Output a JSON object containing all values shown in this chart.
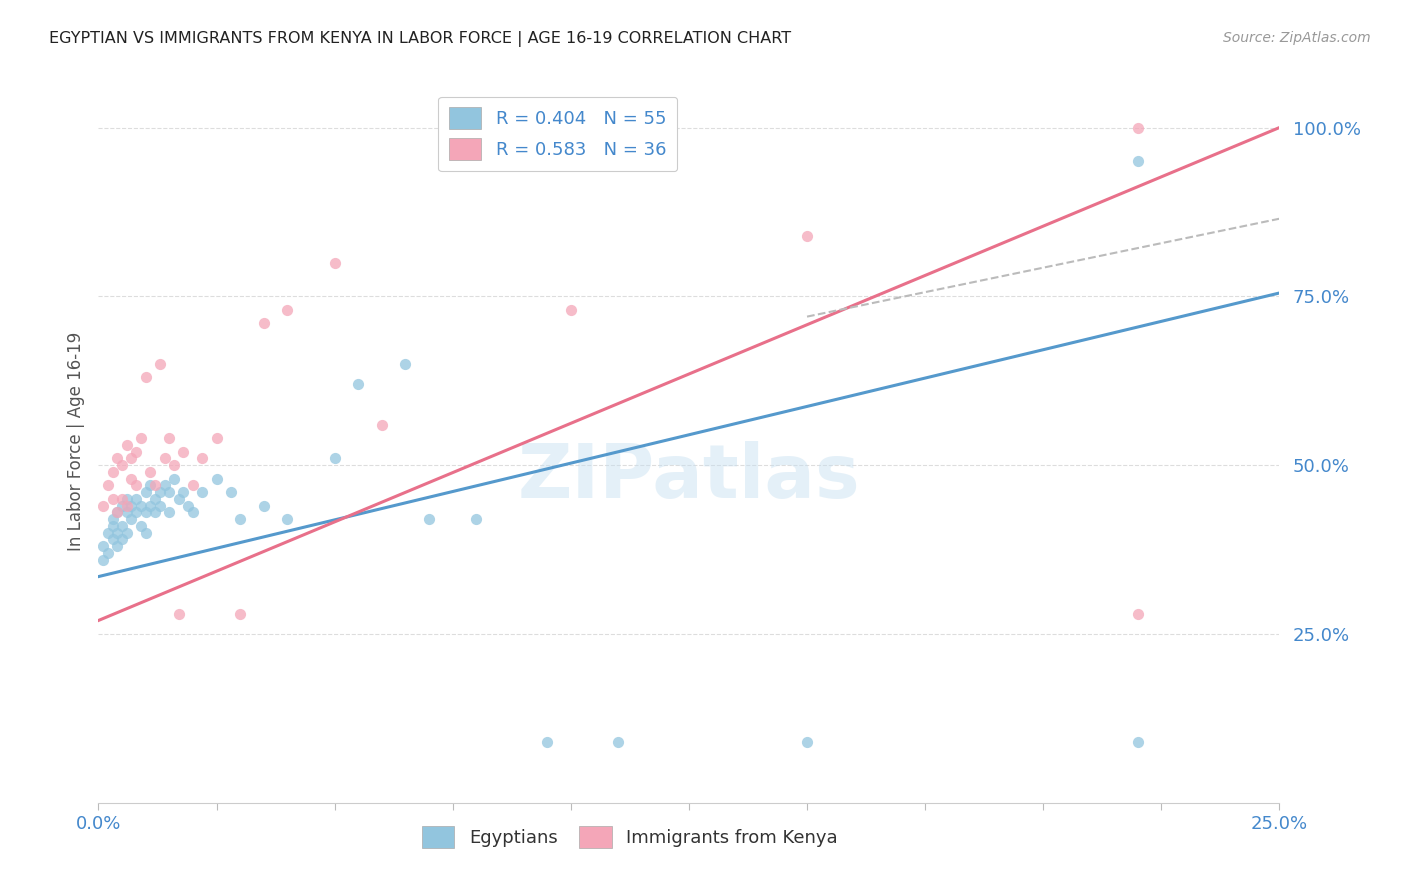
{
  "title": "EGYPTIAN VS IMMIGRANTS FROM KENYA IN LABOR FORCE | AGE 16-19 CORRELATION CHART",
  "source": "Source: ZipAtlas.com",
  "ylabel": "In Labor Force | Age 16-19",
  "ytick_labels": [
    "100.0%",
    "75.0%",
    "50.0%",
    "25.0%"
  ],
  "ytick_values": [
    1.0,
    0.75,
    0.5,
    0.25
  ],
  "watermark": "ZIPatlas",
  "legend_blue_r": "R = 0.404",
  "legend_blue_n": "N = 55",
  "legend_pink_r": "R = 0.583",
  "legend_pink_n": "N = 36",
  "blue_color": "#92c5de",
  "pink_color": "#f4a6b8",
  "blue_line_color": "#5599cc",
  "pink_line_color": "#e8708a",
  "dashed_line_color": "#bbbbbb",
  "title_color": "#222222",
  "axis_label_color": "#4488cc",
  "grid_color": "#dddddd",
  "blue_scatter_x": [
    0.001,
    0.001,
    0.002,
    0.002,
    0.003,
    0.003,
    0.003,
    0.004,
    0.004,
    0.004,
    0.005,
    0.005,
    0.005,
    0.006,
    0.006,
    0.006,
    0.007,
    0.007,
    0.008,
    0.008,
    0.009,
    0.009,
    0.01,
    0.01,
    0.01,
    0.011,
    0.011,
    0.012,
    0.012,
    0.013,
    0.013,
    0.014,
    0.015,
    0.015,
    0.016,
    0.017,
    0.018,
    0.019,
    0.02,
    0.022,
    0.025,
    0.028,
    0.03,
    0.035,
    0.04,
    0.05,
    0.055,
    0.065,
    0.07,
    0.08,
    0.095,
    0.11,
    0.15,
    0.22,
    0.22
  ],
  "blue_scatter_y": [
    0.38,
    0.36,
    0.4,
    0.37,
    0.42,
    0.39,
    0.41,
    0.43,
    0.4,
    0.38,
    0.44,
    0.41,
    0.39,
    0.43,
    0.45,
    0.4,
    0.44,
    0.42,
    0.45,
    0.43,
    0.44,
    0.41,
    0.46,
    0.43,
    0.4,
    0.47,
    0.44,
    0.45,
    0.43,
    0.46,
    0.44,
    0.47,
    0.46,
    0.43,
    0.48,
    0.45,
    0.46,
    0.44,
    0.43,
    0.46,
    0.48,
    0.46,
    0.42,
    0.44,
    0.42,
    0.51,
    0.62,
    0.65,
    0.42,
    0.42,
    0.09,
    0.09,
    0.09,
    0.95,
    0.09
  ],
  "pink_scatter_x": [
    0.001,
    0.002,
    0.003,
    0.003,
    0.004,
    0.004,
    0.005,
    0.005,
    0.006,
    0.006,
    0.007,
    0.007,
    0.008,
    0.008,
    0.009,
    0.01,
    0.011,
    0.012,
    0.013,
    0.014,
    0.015,
    0.016,
    0.017,
    0.018,
    0.02,
    0.022,
    0.025,
    0.03,
    0.035,
    0.04,
    0.05,
    0.06,
    0.1,
    0.15,
    0.22,
    0.22
  ],
  "pink_scatter_y": [
    0.44,
    0.47,
    0.45,
    0.49,
    0.43,
    0.51,
    0.45,
    0.5,
    0.44,
    0.53,
    0.48,
    0.51,
    0.47,
    0.52,
    0.54,
    0.63,
    0.49,
    0.47,
    0.65,
    0.51,
    0.54,
    0.5,
    0.28,
    0.52,
    0.47,
    0.51,
    0.54,
    0.28,
    0.71,
    0.73,
    0.8,
    0.56,
    0.73,
    0.84,
    1.0,
    0.28
  ],
  "blue_trend_x": [
    0.0,
    0.25
  ],
  "blue_trend_y": [
    0.335,
    0.755
  ],
  "pink_trend_x": [
    0.0,
    0.25
  ],
  "pink_trend_y": [
    0.27,
    1.0
  ],
  "dashed_trend_x": [
    0.15,
    0.25
  ],
  "dashed_trend_y": [
    0.72,
    0.865
  ],
  "xmin": 0.0,
  "xmax": 0.25,
  "ymin": 0.0,
  "ymax": 1.07
}
